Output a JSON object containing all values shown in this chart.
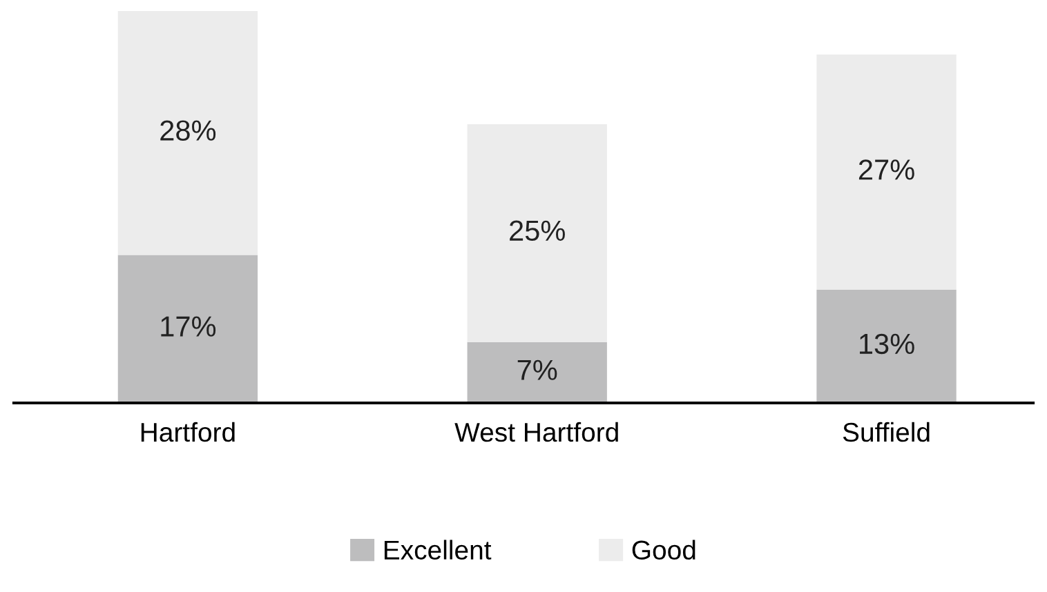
{
  "chart_data": {
    "type": "bar",
    "stacked": true,
    "categories": [
      "Hartford",
      "West Hartford",
      "Suffield"
    ],
    "series": [
      {
        "name": "Excellent",
        "color": "#bdbdbe",
        "values": [
          17,
          7,
          13
        ],
        "value_labels": [
          "17%",
          "7%",
          "13%"
        ]
      },
      {
        "name": "Good",
        "color": "#ececec",
        "values": [
          28,
          25,
          27
        ],
        "value_labels": [
          "28%",
          "25%",
          "27%"
        ]
      }
    ],
    "legend": "bottom",
    "grid": false
  }
}
